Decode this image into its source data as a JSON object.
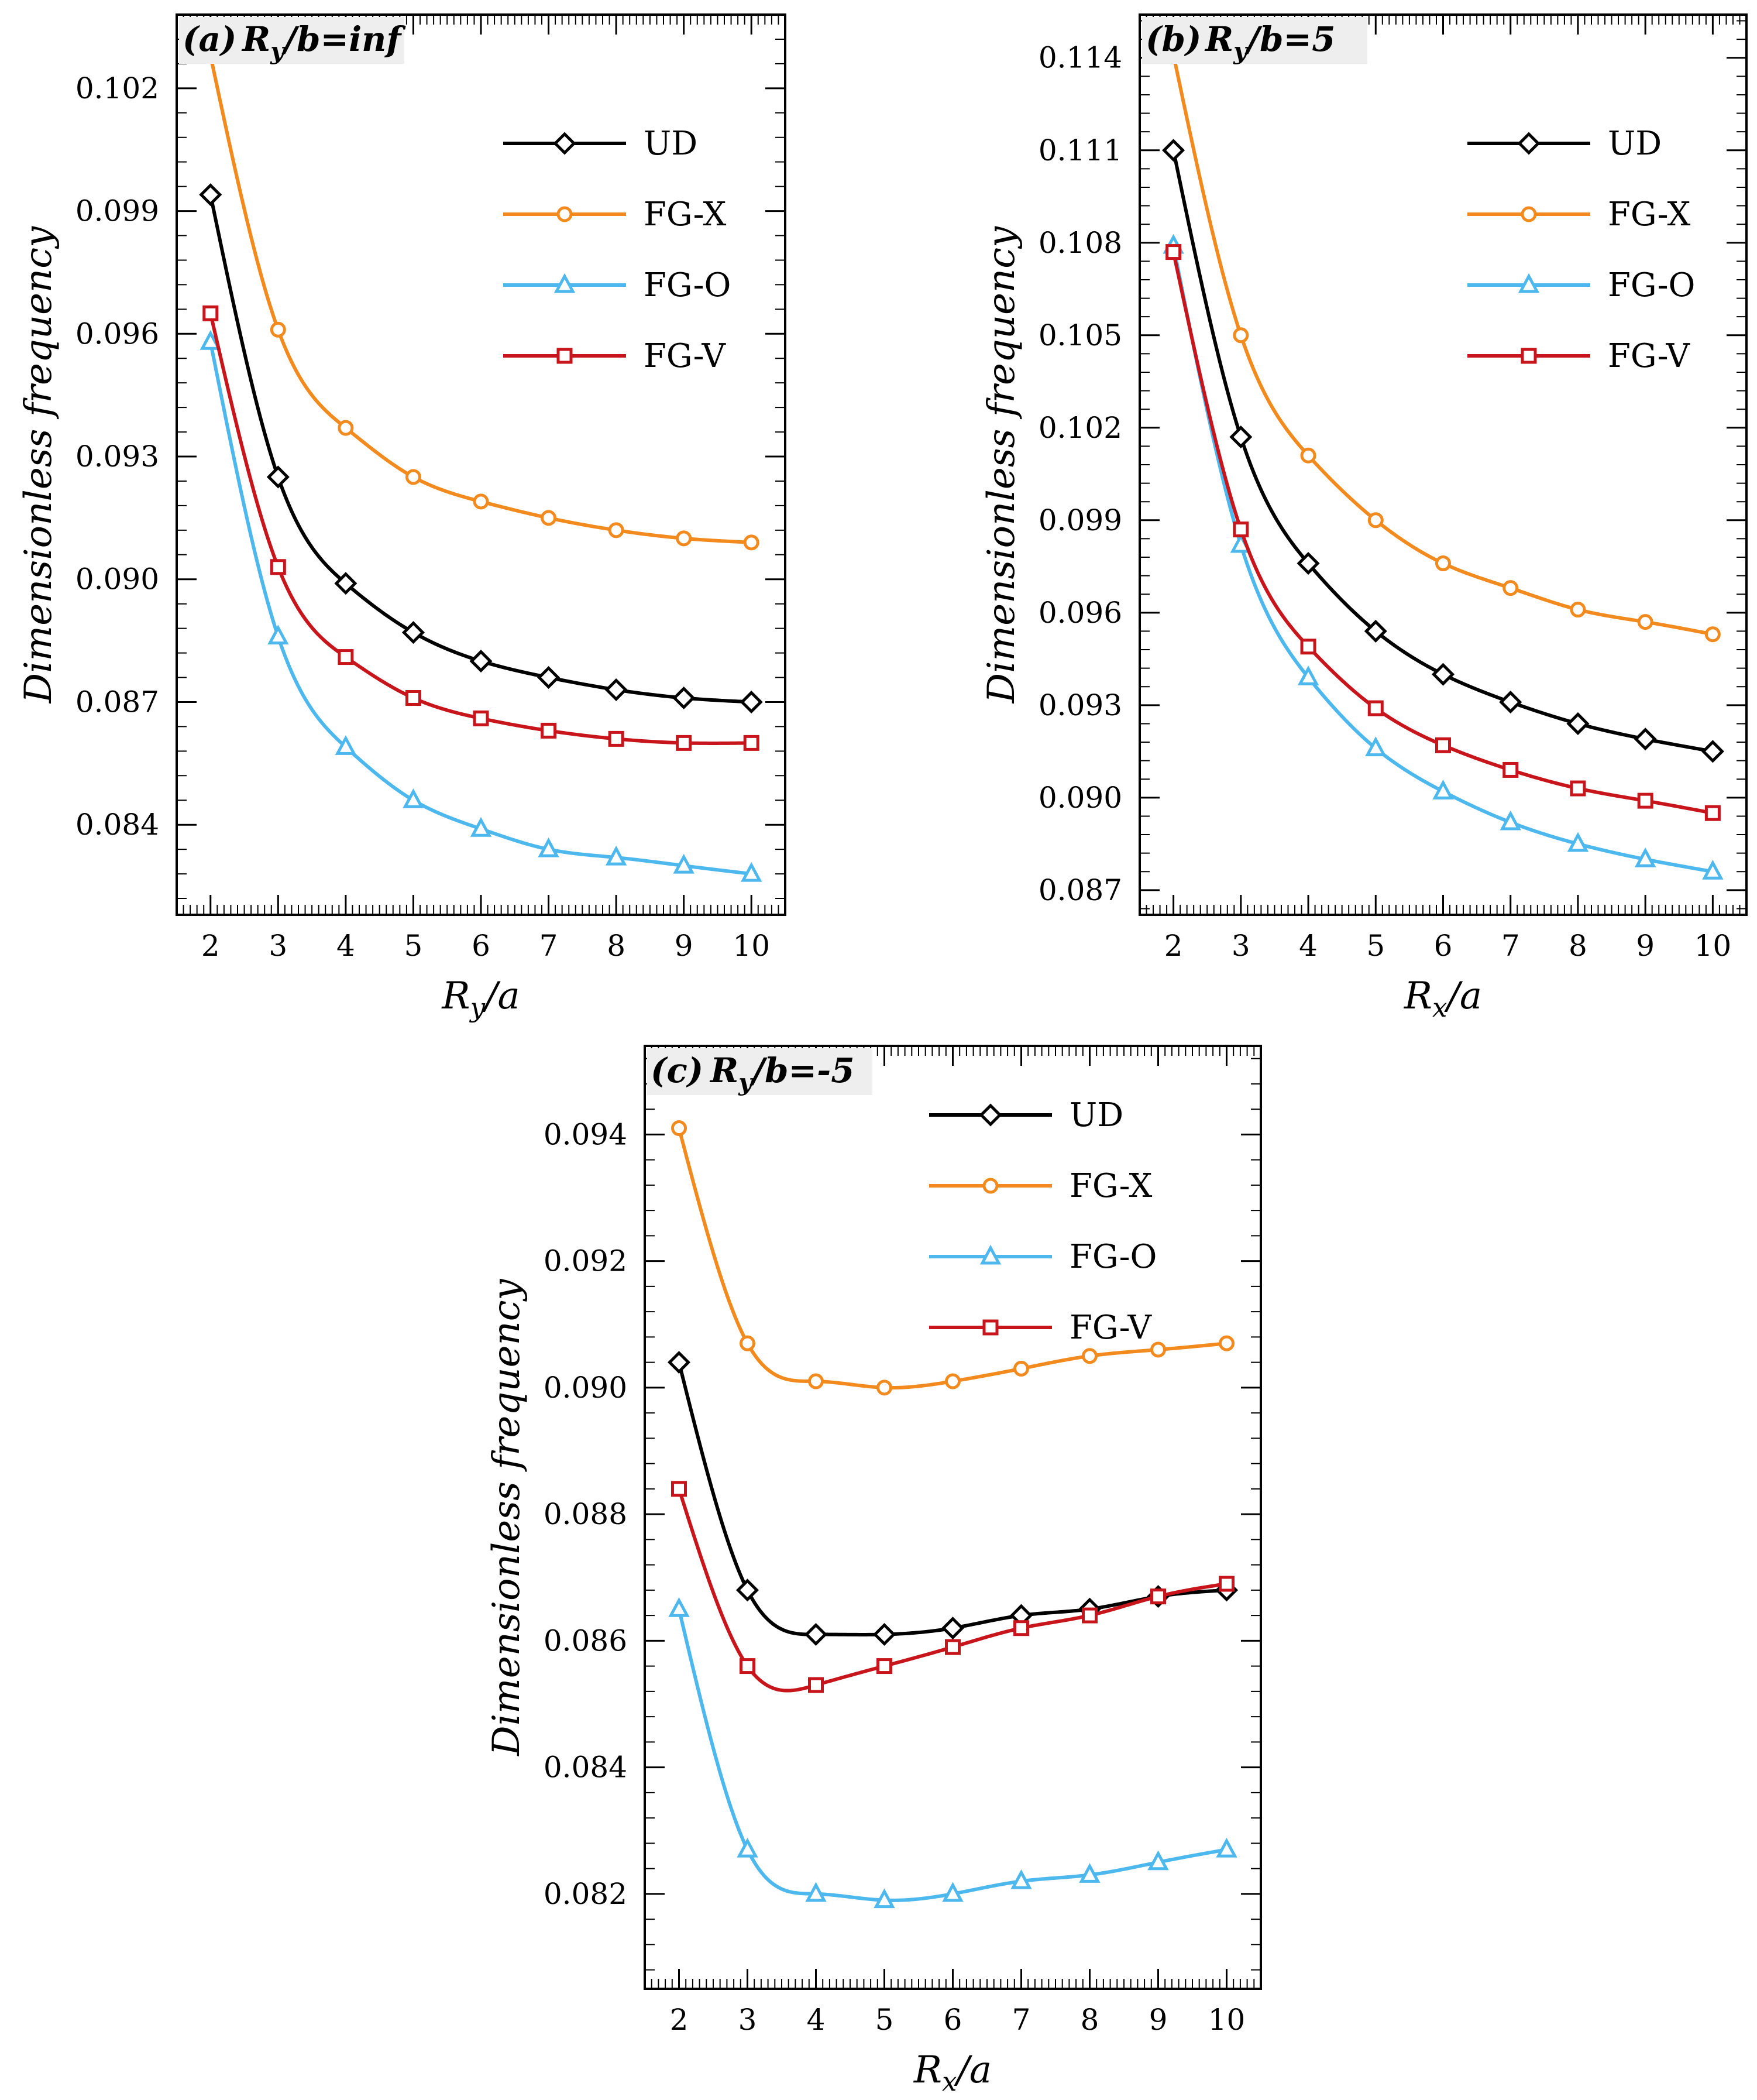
{
  "colors": {
    "UD": "#000000",
    "FG-X": "#f28a1e",
    "FG-O": "#4db8ee",
    "FG-V": "#c8151c",
    "tag_background": "#eeeeee"
  },
  "legend": [
    {
      "name": "UD",
      "marker": "diamond"
    },
    {
      "name": "FG-X",
      "marker": "circle"
    },
    {
      "name": "FG-O",
      "marker": "triangle"
    },
    {
      "name": "FG-V",
      "marker": "square"
    }
  ],
  "chart_data": [
    {
      "id": "a",
      "type": "line",
      "tag_letter": "(a)",
      "title": "R_y/b=inf",
      "title_parts": {
        "base": "R",
        "sub": "y",
        "rest": "/b=inf"
      },
      "xlabel": "R_y/a",
      "xlabel_parts": {
        "base": "R",
        "sub": "y",
        "rest": "/a"
      },
      "ylabel": "Dimensionless frequency",
      "x": [
        2,
        3,
        4,
        5,
        6,
        7,
        8,
        9,
        10
      ],
      "xlim": [
        1.5,
        10.5
      ],
      "ylim": [
        0.0818,
        0.1038
      ],
      "yticks": [
        0.084,
        0.087,
        0.09,
        0.093,
        0.096,
        0.099,
        0.102
      ],
      "ytick_labels": [
        "0.084",
        "0.087",
        "0.090",
        "0.093",
        "0.096",
        "0.099",
        "0.102"
      ],
      "series": [
        {
          "name": "UD",
          "values": [
            0.0994,
            0.0925,
            0.0899,
            0.0887,
            0.088,
            0.0876,
            0.0873,
            0.0871,
            0.087
          ]
        },
        {
          "name": "FG-X",
          "values": [
            0.1028,
            0.0961,
            0.0937,
            0.0925,
            0.0919,
            0.0915,
            0.0912,
            0.091,
            0.0909
          ]
        },
        {
          "name": "FG-O",
          "values": [
            0.0958,
            0.0886,
            0.0859,
            0.0846,
            0.0839,
            0.0834,
            0.0832,
            0.083,
            0.0828
          ]
        },
        {
          "name": "FG-V",
          "values": [
            0.0965,
            0.0903,
            0.0881,
            0.0871,
            0.0866,
            0.0863,
            0.0861,
            0.086,
            0.086
          ]
        }
      ]
    },
    {
      "id": "b",
      "type": "line",
      "tag_letter": "(b)",
      "title": "R_y/b=5",
      "title_parts": {
        "base": "R",
        "sub": "y",
        "rest": "/b=5"
      },
      "xlabel": "R_x/a",
      "xlabel_parts": {
        "base": "R",
        "sub": "x",
        "rest": "/a"
      },
      "ylabel": "Dimensionless frequency",
      "x": [
        2,
        3,
        4,
        5,
        6,
        7,
        8,
        9,
        10
      ],
      "xlim": [
        1.5,
        10.5
      ],
      "ylim": [
        0.0862,
        0.1154
      ],
      "yticks": [
        0.087,
        0.09,
        0.093,
        0.096,
        0.099,
        0.102,
        0.105,
        0.108,
        0.111,
        0.114
      ],
      "ytick_labels": [
        "0.087",
        "0.090",
        "0.093",
        "0.096",
        "0.099",
        "0.102",
        "0.105",
        "0.108",
        "0.111",
        "0.114"
      ],
      "series": [
        {
          "name": "UD",
          "values": [
            0.111,
            0.1017,
            0.0976,
            0.0954,
            0.094,
            0.0931,
            0.0924,
            0.0919,
            0.0915
          ]
        },
        {
          "name": "FG-X",
          "values": [
            0.1141,
            0.105,
            0.1011,
            0.099,
            0.0976,
            0.0968,
            0.0961,
            0.0957,
            0.0953
          ]
        },
        {
          "name": "FG-O",
          "values": [
            0.1079,
            0.0982,
            0.0939,
            0.0916,
            0.0902,
            0.0892,
            0.0885,
            0.088,
            0.0876
          ]
        },
        {
          "name": "FG-V",
          "values": [
            0.1077,
            0.0987,
            0.0949,
            0.0929,
            0.0917,
            0.0909,
            0.0903,
            0.0899,
            0.0895
          ]
        }
      ]
    },
    {
      "id": "c",
      "type": "line",
      "tag_letter": "(c)",
      "title": "R_y/b=-5",
      "title_parts": {
        "base": "R",
        "sub": "y",
        "rest": "/b=-5"
      },
      "xlabel": "R_x/a",
      "xlabel_parts": {
        "base": "R",
        "sub": "x",
        "rest": "/a"
      },
      "ylabel": "Dimensionless frequency",
      "x": [
        2,
        3,
        4,
        5,
        6,
        7,
        8,
        9,
        10
      ],
      "xlim": [
        1.5,
        10.5
      ],
      "ylim": [
        0.0805,
        0.0954
      ],
      "yticks": [
        0.082,
        0.084,
        0.086,
        0.088,
        0.09,
        0.092,
        0.094
      ],
      "ytick_labels": [
        "0.082",
        "0.084",
        "0.086",
        "0.088",
        "0.090",
        "0.092",
        "0.094"
      ],
      "series": [
        {
          "name": "UD",
          "values": [
            0.0904,
            0.0868,
            0.0861,
            0.0861,
            0.0862,
            0.0864,
            0.0865,
            0.0867,
            0.0868
          ]
        },
        {
          "name": "FG-X",
          "values": [
            0.0941,
            0.0907,
            0.0901,
            0.09,
            0.0901,
            0.0903,
            0.0905,
            0.0906,
            0.0907
          ]
        },
        {
          "name": "FG-O",
          "values": [
            0.0865,
            0.0827,
            0.082,
            0.0819,
            0.082,
            0.0822,
            0.0823,
            0.0825,
            0.0827
          ]
        },
        {
          "name": "FG-V",
          "values": [
            0.0884,
            0.0856,
            0.0853,
            0.0856,
            0.0859,
            0.0862,
            0.0864,
            0.0867,
            0.0869
          ]
        }
      ]
    }
  ]
}
